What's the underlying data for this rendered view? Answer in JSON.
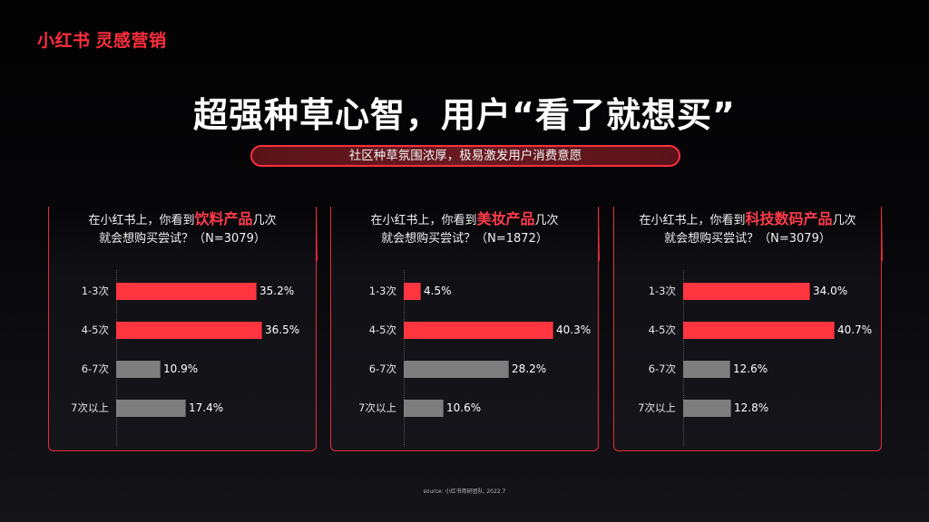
{
  "brand": {
    "name": "小红书",
    "product": "灵感营销",
    "color": "#ff2e3d"
  },
  "title": "超强种草心智，用户“看了就想买”",
  "subtitle": "社区种草氛围浓厚，极易激发用户消费意愿",
  "source": "source: 小红书用研团队, 2022.7",
  "cards": [
    {
      "q_prefix": "在小红书上，你看到",
      "q_highlight": "饮料产品",
      "q_suffix": "几次",
      "q_line2": "就会想购买尝试？（N=3079）"
    },
    {
      "q_prefix": "在小红书上，你看到",
      "q_highlight": "美妆产品",
      "q_suffix": "几次",
      "q_line2": "就会想购买尝试？（N=1872）"
    },
    {
      "q_prefix": "在小红书上，你看到",
      "q_highlight": "科技数码产品",
      "q_suffix": "几次",
      "q_line2": "就会想购买尝试？（N=3079）"
    }
  ],
  "chart_data": [
    {
      "type": "bar",
      "orientation": "horizontal",
      "title": "在小红书上，你看到饮料产品几次就会想购买尝试？（N=3079）",
      "categories": [
        "1-3次",
        "4-5次",
        "6-7次",
        "7次以上"
      ],
      "values": [
        35.2,
        36.5,
        10.9,
        17.4
      ],
      "value_labels": [
        "35.2%",
        "36.5%",
        "10.9%",
        "17.4%"
      ],
      "colors": [
        "#ff3540",
        "#ff3540",
        "#7e7e7e",
        "#7e7e7e"
      ],
      "xlabel": "",
      "ylabel": "",
      "unit": "%",
      "grid": false
    },
    {
      "type": "bar",
      "orientation": "horizontal",
      "title": "在小红书上，你看到美妆产品几次就会想购买尝试？（N=1872）",
      "categories": [
        "1-3次",
        "4-5次",
        "6-7次",
        "7次以上"
      ],
      "values": [
        4.5,
        40.3,
        28.2,
        10.6
      ],
      "value_labels": [
        "4.5%",
        "40.3%",
        "28.2%",
        "10.6%"
      ],
      "colors": [
        "#ff3540",
        "#ff3540",
        "#7e7e7e",
        "#7e7e7e"
      ],
      "xlabel": "",
      "ylabel": "",
      "unit": "%",
      "grid": false
    },
    {
      "type": "bar",
      "orientation": "horizontal",
      "title": "在小红书上，你看到科技数码产品几次就会想购买尝试？（N=3079）",
      "categories": [
        "1-3次",
        "4-5次",
        "6-7次",
        "7次以上"
      ],
      "values": [
        34.0,
        40.7,
        12.6,
        12.8
      ],
      "value_labels": [
        "34.0%",
        "40.7%",
        "12.6%",
        "12.8%"
      ],
      "colors": [
        "#ff3540",
        "#ff3540",
        "#7e7e7e",
        "#7e7e7e"
      ],
      "xlabel": "",
      "ylabel": "",
      "unit": "%",
      "grid": false
    }
  ]
}
